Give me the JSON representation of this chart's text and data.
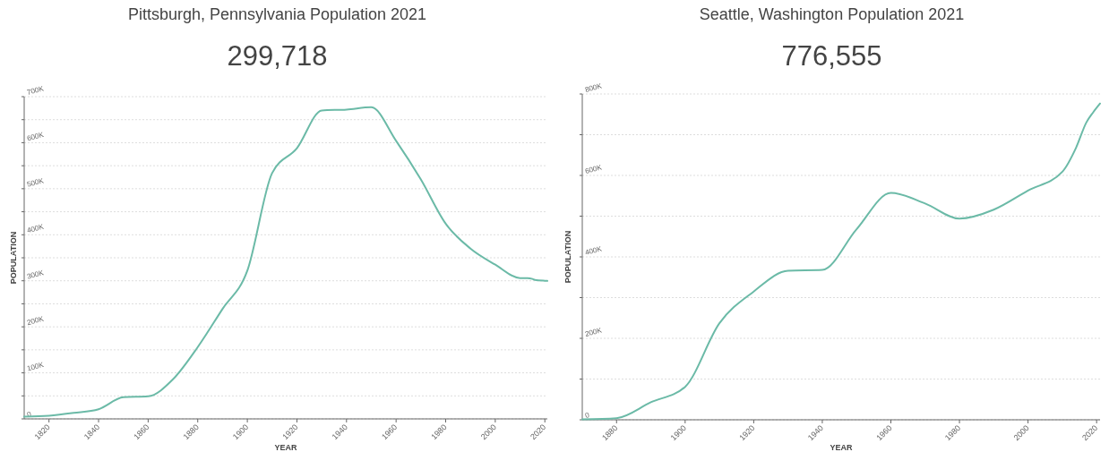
{
  "chart_data": [
    {
      "type": "line",
      "title": "Pittsburgh, Pennsylvania Population 2021",
      "subtitle": "299,718",
      "xlabel": "YEAR",
      "ylabel": "POPULATION",
      "grid": "y",
      "line_style": "solid",
      "xlim": [
        1810,
        2021
      ],
      "xticks": [
        1820,
        1840,
        1860,
        1880,
        1900,
        1920,
        1940,
        1960,
        1980,
        2000,
        2020
      ],
      "ylim": [
        0,
        700000
      ],
      "yticks": [
        {
          "value": 0,
          "label": "0"
        },
        {
          "value": 50000,
          "label": null
        },
        {
          "value": 100000,
          "label": "100K"
        },
        {
          "value": 150000,
          "label": null
        },
        {
          "value": 200000,
          "label": "200K"
        },
        {
          "value": 250000,
          "label": null
        },
        {
          "value": 300000,
          "label": "300K"
        },
        {
          "value": 350000,
          "label": null
        },
        {
          "value": 400000,
          "label": "400K"
        },
        {
          "value": 450000,
          "label": null
        },
        {
          "value": 500000,
          "label": "500K"
        },
        {
          "value": 550000,
          "label": null
        },
        {
          "value": 600000,
          "label": "600K"
        },
        {
          "value": 650000,
          "label": null
        },
        {
          "value": 700000,
          "label": "700K"
        }
      ],
      "series": [
        {
          "color": "#6bbaa7",
          "x": [
            1810,
            1820,
            1830,
            1840,
            1850,
            1860,
            1870,
            1880,
            1890,
            1900,
            1910,
            1920,
            1930,
            1940,
            1950,
            1960,
            1970,
            1980,
            1990,
            2000,
            2010,
            2013,
            2015,
            2016,
            2020,
            2021
          ],
          "values": [
            5000,
            7000,
            13000,
            21000,
            47000,
            49000,
            86000,
            156000,
            239000,
            322000,
            534000,
            588000,
            670000,
            672000,
            677000,
            604000,
            520000,
            424000,
            370000,
            335000,
            306000,
            306000,
            304000,
            302000,
            300000,
            299718
          ]
        }
      ]
    },
    {
      "type": "line",
      "title": "Seattle, Washington Population 2021",
      "subtitle": "776,555",
      "xlabel": "YEAR",
      "ylabel": "POPULATION",
      "grid": "y",
      "line_style": "solid",
      "xlim": [
        1870,
        2021
      ],
      "xticks": [
        1880,
        1900,
        1920,
        1940,
        1960,
        1980,
        2000,
        2020
      ],
      "ylim": [
        0,
        800000
      ],
      "yticks": [
        {
          "value": 0,
          "label": "0"
        },
        {
          "value": 100000,
          "label": null
        },
        {
          "value": 200000,
          "label": "200K"
        },
        {
          "value": 300000,
          "label": null
        },
        {
          "value": 400000,
          "label": "400K"
        },
        {
          "value": 500000,
          "label": null
        },
        {
          "value": 600000,
          "label": "600K"
        },
        {
          "value": 700000,
          "label": null
        },
        {
          "value": 800000,
          "label": "800K"
        }
      ],
      "series": [
        {
          "color": "#6bbaa7",
          "x": [
            1870,
            1880,
            1890,
            1900,
            1910,
            1920,
            1930,
            1940,
            1950,
            1960,
            1970,
            1980,
            1990,
            2000,
            2010,
            2014,
            2017,
            2019,
            2021
          ],
          "values": [
            1000,
            4000,
            43000,
            81000,
            237000,
            315000,
            366000,
            368000,
            468000,
            557000,
            531000,
            494000,
            516000,
            563000,
            609000,
            668000,
            730000,
            755000,
            776555
          ]
        }
      ]
    }
  ]
}
